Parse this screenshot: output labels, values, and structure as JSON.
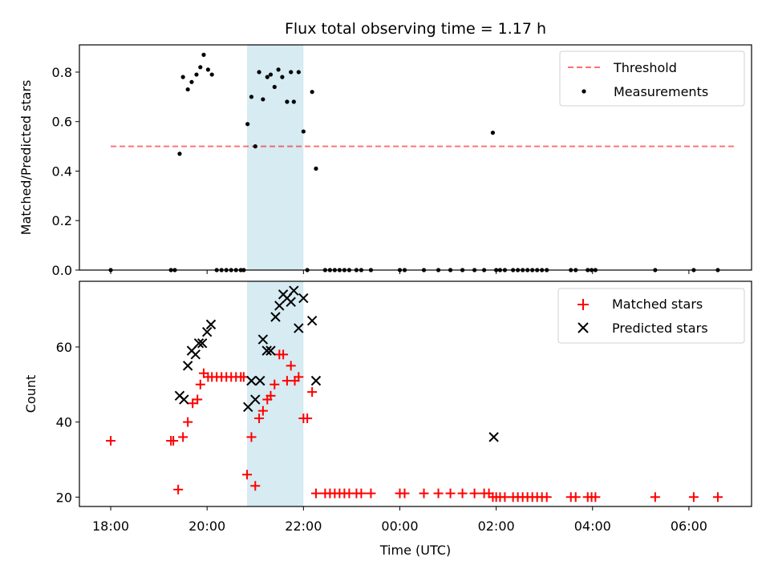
{
  "chart_data": {
    "title": "Flux total observing time = 1.17 h",
    "xlabel": "Time (UTC)",
    "x_tick_labels": [
      "18:00",
      "20:00",
      "22:00",
      "00:00",
      "02:00",
      "04:00",
      "06:00"
    ],
    "x_tick_hours": [
      18,
      20,
      22,
      24,
      26,
      28,
      30
    ],
    "xlim_hours": [
      17.35,
      31.3
    ],
    "shaded_span_hours": [
      20.83,
      22.0
    ],
    "colors": {
      "shade": "#add8e6",
      "threshold": "#ff0000",
      "matched": "#ff0000",
      "predicted": "#000000",
      "measurements": "#000000"
    },
    "top": {
      "type": "scatter",
      "ylabel": "Matched/Predicted stars",
      "ylim": [
        0.0,
        0.91
      ],
      "yticks": [
        0.0,
        0.2,
        0.4,
        0.6,
        0.8
      ],
      "y_tick_labels": [
        "0.0",
        "0.2",
        "0.4",
        "0.6",
        "0.8"
      ],
      "legend": {
        "placement": "upper right",
        "threshold_label": "Threshold",
        "measurements_label": "Measurements"
      },
      "threshold": {
        "value": 0.5,
        "x_from": 18.0,
        "x_to": 31.0
      },
      "measurements": [
        [
          18.0,
          0.0
        ],
        [
          19.25,
          0.0
        ],
        [
          19.33,
          0.0
        ],
        [
          19.43,
          0.47
        ],
        [
          19.5,
          0.78
        ],
        [
          19.6,
          0.73
        ],
        [
          19.68,
          0.76
        ],
        [
          19.78,
          0.79
        ],
        [
          19.86,
          0.82
        ],
        [
          19.93,
          0.87
        ],
        [
          20.02,
          0.81
        ],
        [
          20.1,
          0.79
        ],
        [
          20.2,
          0.0
        ],
        [
          20.3,
          0.0
        ],
        [
          20.4,
          0.0
        ],
        [
          20.5,
          0.0
        ],
        [
          20.6,
          0.0
        ],
        [
          20.7,
          0.0
        ],
        [
          20.76,
          0.0
        ],
        [
          20.84,
          0.59
        ],
        [
          20.92,
          0.7
        ],
        [
          21.0,
          0.5
        ],
        [
          21.08,
          0.8
        ],
        [
          21.16,
          0.69
        ],
        [
          21.25,
          0.78
        ],
        [
          21.32,
          0.79
        ],
        [
          21.4,
          0.74
        ],
        [
          21.48,
          0.81
        ],
        [
          21.56,
          0.78
        ],
        [
          21.66,
          0.68
        ],
        [
          21.74,
          0.8
        ],
        [
          21.8,
          0.68
        ],
        [
          21.9,
          0.8
        ],
        [
          22.0,
          0.56
        ],
        [
          22.08,
          0.0
        ],
        [
          22.18,
          0.72
        ],
        [
          22.26,
          0.41
        ],
        [
          22.45,
          0.0
        ],
        [
          22.55,
          0.0
        ],
        [
          22.65,
          0.0
        ],
        [
          22.75,
          0.0
        ],
        [
          22.85,
          0.0
        ],
        [
          22.95,
          0.0
        ],
        [
          23.1,
          0.0
        ],
        [
          23.2,
          0.0
        ],
        [
          23.4,
          0.0
        ],
        [
          24.0,
          0.0
        ],
        [
          24.1,
          0.0
        ],
        [
          24.5,
          0.0
        ],
        [
          24.8,
          0.0
        ],
        [
          25.05,
          0.0
        ],
        [
          25.3,
          0.0
        ],
        [
          25.55,
          0.0
        ],
        [
          25.75,
          0.0
        ],
        [
          25.93,
          0.555
        ],
        [
          26.0,
          0.0
        ],
        [
          26.08,
          0.0
        ],
        [
          26.18,
          0.0
        ],
        [
          26.35,
          0.0
        ],
        [
          26.45,
          0.0
        ],
        [
          26.55,
          0.0
        ],
        [
          26.65,
          0.0
        ],
        [
          26.75,
          0.0
        ],
        [
          26.85,
          0.0
        ],
        [
          26.95,
          0.0
        ],
        [
          27.05,
          0.0
        ],
        [
          27.55,
          0.0
        ],
        [
          27.65,
          0.0
        ],
        [
          27.9,
          0.0
        ],
        [
          27.98,
          0.0
        ],
        [
          28.06,
          0.0
        ],
        [
          29.3,
          0.0
        ],
        [
          30.1,
          0.0
        ],
        [
          30.6,
          0.0
        ]
      ]
    },
    "bottom": {
      "type": "scatter",
      "ylabel": "Count",
      "ylim": [
        17.5,
        77.5
      ],
      "yticks": [
        20,
        40,
        60
      ],
      "y_tick_labels": [
        "20",
        "40",
        "60"
      ],
      "legend": {
        "placement": "upper right",
        "matched_label": "Matched stars",
        "predicted_label": "Predicted stars"
      },
      "matched": [
        [
          18.0,
          35
        ],
        [
          19.25,
          35
        ],
        [
          19.3,
          35
        ],
        [
          19.4,
          22
        ],
        [
          19.5,
          36
        ],
        [
          19.6,
          40
        ],
        [
          19.7,
          45
        ],
        [
          19.8,
          46
        ],
        [
          19.86,
          50
        ],
        [
          19.93,
          53
        ],
        [
          20.02,
          52
        ],
        [
          20.1,
          52
        ],
        [
          20.2,
          52
        ],
        [
          20.3,
          52
        ],
        [
          20.4,
          52
        ],
        [
          20.5,
          52
        ],
        [
          20.6,
          52
        ],
        [
          20.7,
          52
        ],
        [
          20.76,
          52
        ],
        [
          20.83,
          26
        ],
        [
          20.92,
          36
        ],
        [
          21.0,
          23
        ],
        [
          21.08,
          41
        ],
        [
          21.16,
          43
        ],
        [
          21.25,
          46
        ],
        [
          21.32,
          47
        ],
        [
          21.4,
          50
        ],
        [
          21.5,
          58
        ],
        [
          21.58,
          58
        ],
        [
          21.66,
          51
        ],
        [
          21.74,
          55
        ],
        [
          21.82,
          51
        ],
        [
          21.9,
          52
        ],
        [
          22.0,
          41
        ],
        [
          22.08,
          41
        ],
        [
          22.18,
          48
        ],
        [
          22.26,
          21
        ],
        [
          22.45,
          21
        ],
        [
          22.55,
          21
        ],
        [
          22.65,
          21
        ],
        [
          22.75,
          21
        ],
        [
          22.85,
          21
        ],
        [
          22.95,
          21
        ],
        [
          23.1,
          21
        ],
        [
          23.2,
          21
        ],
        [
          23.4,
          21
        ],
        [
          24.0,
          21
        ],
        [
          24.1,
          21
        ],
        [
          24.5,
          21
        ],
        [
          24.8,
          21
        ],
        [
          25.05,
          21
        ],
        [
          25.3,
          21
        ],
        [
          25.55,
          21
        ],
        [
          25.75,
          21
        ],
        [
          25.85,
          21
        ],
        [
          25.93,
          20
        ],
        [
          26.0,
          20
        ],
        [
          26.08,
          20
        ],
        [
          26.18,
          20
        ],
        [
          26.35,
          20
        ],
        [
          26.45,
          20
        ],
        [
          26.55,
          20
        ],
        [
          26.65,
          20
        ],
        [
          26.75,
          20
        ],
        [
          26.85,
          20
        ],
        [
          26.95,
          20
        ],
        [
          27.05,
          20
        ],
        [
          27.55,
          20
        ],
        [
          27.65,
          20
        ],
        [
          27.9,
          20
        ],
        [
          27.98,
          20
        ],
        [
          28.06,
          20
        ],
        [
          29.3,
          20
        ],
        [
          30.1,
          20
        ],
        [
          30.6,
          20
        ]
      ],
      "predicted": [
        [
          19.43,
          47
        ],
        [
          19.52,
          46
        ],
        [
          19.6,
          55
        ],
        [
          19.68,
          59
        ],
        [
          19.76,
          58
        ],
        [
          19.83,
          61
        ],
        [
          19.9,
          61
        ],
        [
          20.0,
          64
        ],
        [
          20.08,
          66
        ],
        [
          20.85,
          44
        ],
        [
          20.92,
          51
        ],
        [
          21.0,
          46
        ],
        [
          21.1,
          51
        ],
        [
          21.16,
          62
        ],
        [
          21.24,
          59
        ],
        [
          21.32,
          59
        ],
        [
          21.42,
          68
        ],
        [
          21.5,
          71
        ],
        [
          21.58,
          74
        ],
        [
          21.66,
          73
        ],
        [
          21.74,
          72
        ],
        [
          21.8,
          75
        ],
        [
          21.9,
          65
        ],
        [
          22.0,
          73
        ],
        [
          22.18,
          67
        ],
        [
          22.26,
          51
        ],
        [
          25.95,
          36
        ]
      ]
    }
  }
}
